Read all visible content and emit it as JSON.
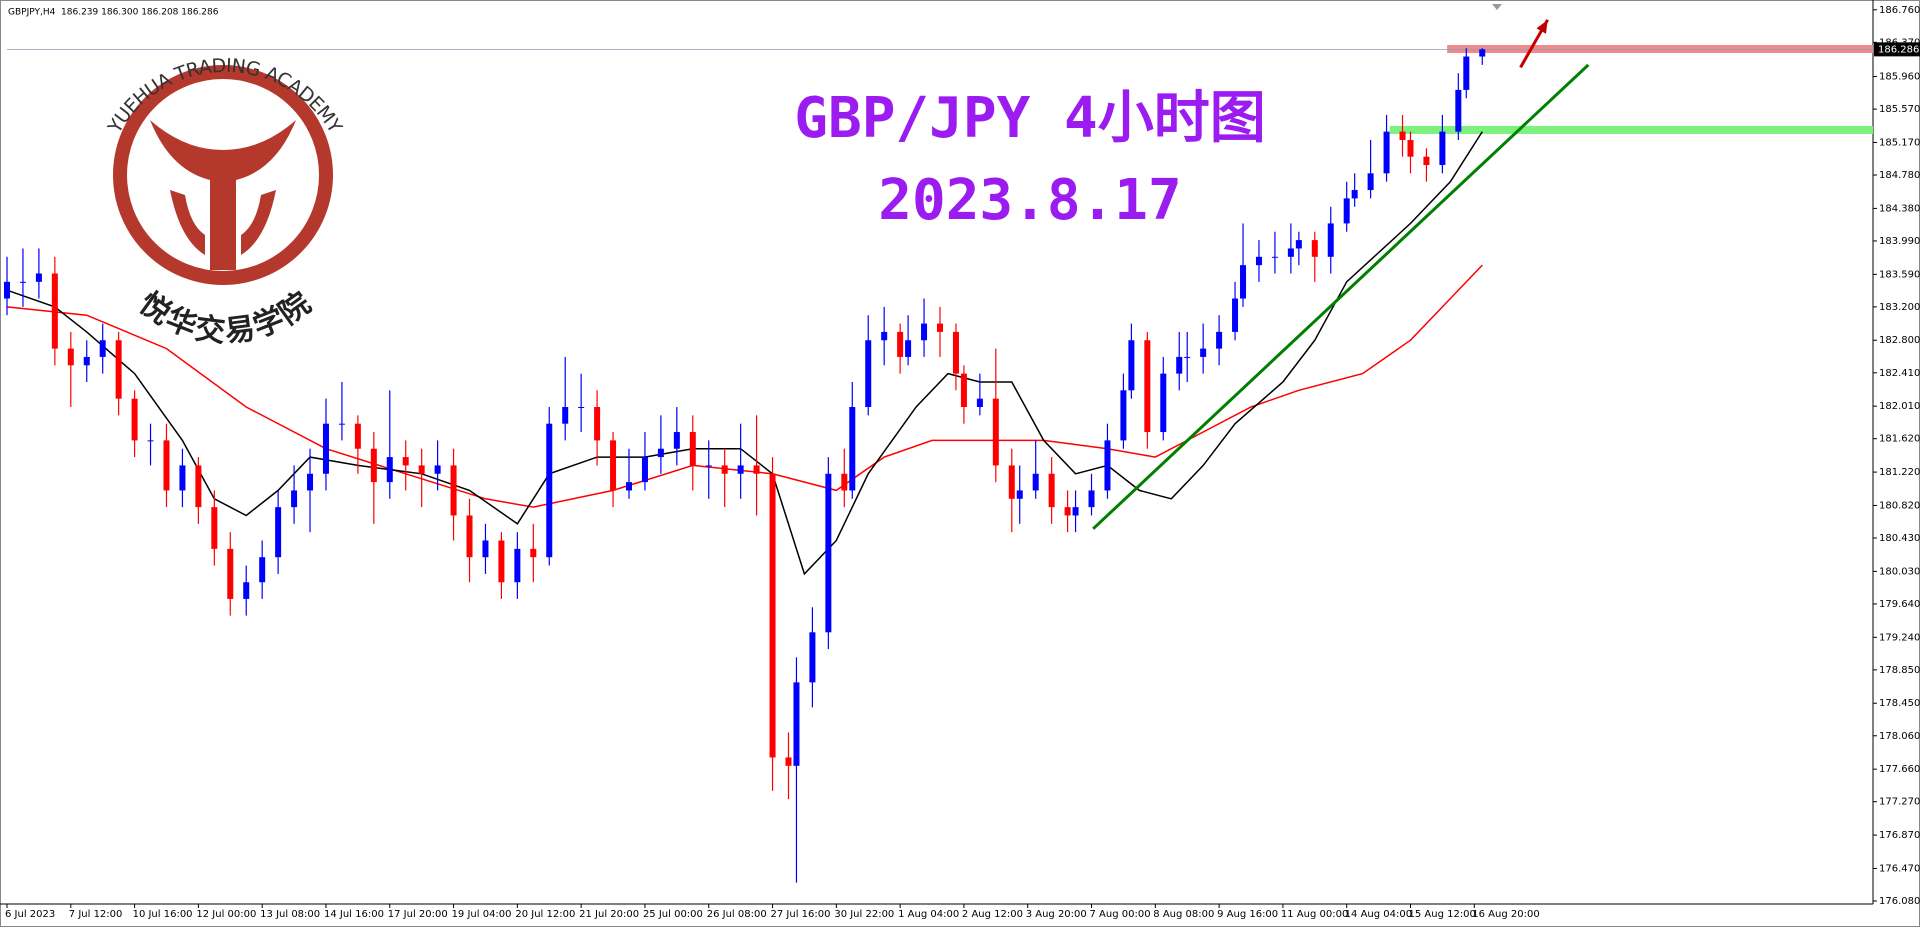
{
  "header": "GBPJPY,H4  186.239 186.300 186.208 186.286",
  "logo": {
    "name_en": "YUEHUA TRADING ACADEMY",
    "name_cn": "悦华交易学院"
  },
  "chart_data": {
    "type": "candlestick",
    "title": "GBP/JPY 4小时图",
    "subtitle": "2023.8.17",
    "title_color": "#9b1cf0",
    "up_color": "#0000ff",
    "down_color": "#ff0000",
    "xlim": [
      0,
      234
    ],
    "ylim": [
      176.08,
      186.76
    ],
    "xticks": [
      {
        "value": 0,
        "label": "6 Jul 2023"
      },
      {
        "value": 8,
        "label": "7 Jul 12:00"
      },
      {
        "value": 16,
        "label": "10 Jul 16:00"
      },
      {
        "value": 24,
        "label": "12 Jul 00:00"
      },
      {
        "value": 32,
        "label": "13 Jul 08:00"
      },
      {
        "value": 40,
        "label": "14 Jul 16:00"
      },
      {
        "value": 48,
        "label": "17 Jul 20:00"
      },
      {
        "value": 56,
        "label": "19 Jul 04:00"
      },
      {
        "value": 64,
        "label": "20 Jul 12:00"
      },
      {
        "value": 72,
        "label": "21 Jul 20:00"
      },
      {
        "value": 80,
        "label": "25 Jul 00:00"
      },
      {
        "value": 88,
        "label": "26 Jul 08:00"
      },
      {
        "value": 96,
        "label": "27 Jul 16:00"
      },
      {
        "value": 104,
        "label": "30 Jul 22:00"
      },
      {
        "value": 112,
        "label": "1 Aug 04:00"
      },
      {
        "value": 120,
        "label": "2 Aug 12:00"
      },
      {
        "value": 128,
        "label": "3 Aug 20:00"
      },
      {
        "value": 136,
        "label": "7 Aug 00:00"
      },
      {
        "value": 144,
        "label": "8 Aug 08:00"
      },
      {
        "value": 152,
        "label": "9 Aug 16:00"
      },
      {
        "value": 160,
        "label": "11 Aug 00:00"
      },
      {
        "value": 168,
        "label": "14 Aug 04:00"
      },
      {
        "value": 176,
        "label": "15 Aug 12:00"
      },
      {
        "value": 184,
        "label": "16 Aug 20:00"
      }
    ],
    "yticks": [
      {
        "value": 186.76,
        "label": "186.760"
      },
      {
        "value": 186.37,
        "label": "186.370"
      },
      {
        "value": 185.96,
        "label": "185.960"
      },
      {
        "value": 185.57,
        "label": "185.570"
      },
      {
        "value": 185.17,
        "label": "185.170"
      },
      {
        "value": 184.78,
        "label": "184.780"
      },
      {
        "value": 184.38,
        "label": "184.380"
      },
      {
        "value": 183.99,
        "label": "183.990"
      },
      {
        "value": 183.59,
        "label": "183.590"
      },
      {
        "value": 183.2,
        "label": "183.200"
      },
      {
        "value": 182.8,
        "label": "182.800"
      },
      {
        "value": 182.41,
        "label": "182.410"
      },
      {
        "value": 182.01,
        "label": "182.010"
      },
      {
        "value": 181.62,
        "label": "181.620"
      },
      {
        "value": 181.22,
        "label": "181.220"
      },
      {
        "value": 180.82,
        "label": "180.820"
      },
      {
        "value": 180.43,
        "label": "180.430"
      },
      {
        "value": 180.03,
        "label": "180.030"
      },
      {
        "value": 179.64,
        "label": "179.640"
      },
      {
        "value": 179.24,
        "label": "179.240"
      },
      {
        "value": 178.85,
        "label": "178.850"
      },
      {
        "value": 178.45,
        "label": "178.450"
      },
      {
        "value": 178.06,
        "label": "178.060"
      },
      {
        "value": 177.66,
        "label": "177.660"
      },
      {
        "value": 177.27,
        "label": "177.270"
      },
      {
        "value": 176.87,
        "label": "176.870"
      },
      {
        "value": 176.47,
        "label": "176.470"
      },
      {
        "value": 176.08,
        "label": "176.080"
      }
    ],
    "last_price": {
      "value": 186.286,
      "label": "186.286"
    },
    "candles": {
      "x": [
        0,
        2,
        4,
        6,
        8,
        10,
        12,
        14,
        16,
        18,
        20,
        22,
        24,
        26,
        28,
        30,
        32,
        34,
        36,
        38,
        40,
        42,
        44,
        46,
        48,
        50,
        52,
        54,
        56,
        58,
        60,
        62,
        64,
        66,
        68,
        70,
        72,
        74,
        76,
        78,
        80,
        82,
        84,
        86,
        88,
        90,
        92,
        94,
        96,
        98,
        99,
        101,
        103,
        105,
        106,
        108,
        110,
        112,
        113,
        115,
        117,
        119,
        120,
        122,
        124,
        126,
        127,
        129,
        131,
        133,
        134,
        136,
        138,
        140,
        141,
        143,
        145,
        147,
        148,
        150,
        152,
        154,
        155,
        157,
        159,
        161,
        162,
        164,
        166,
        168,
        169,
        171,
        173,
        175,
        176,
        178,
        180,
        182,
        183,
        185
      ],
      "open": [
        183.3,
        183.5,
        183.5,
        183.6,
        182.7,
        182.5,
        182.6,
        182.8,
        182.1,
        181.6,
        181.6,
        181.0,
        181.3,
        180.8,
        180.3,
        179.7,
        179.9,
        180.2,
        180.8,
        181.0,
        181.2,
        181.8,
        181.8,
        181.5,
        181.1,
        181.4,
        181.3,
        181.2,
        181.3,
        180.7,
        180.2,
        180.4,
        179.9,
        180.3,
        180.2,
        181.8,
        182.0,
        182.0,
        181.6,
        181.0,
        181.1,
        181.4,
        181.5,
        181.7,
        181.3,
        181.3,
        181.2,
        181.3,
        181.2,
        177.8,
        177.7,
        178.7,
        179.3,
        181.2,
        181.0,
        182.0,
        182.8,
        182.9,
        182.6,
        182.8,
        183.0,
        182.9,
        182.4,
        182.0,
        182.1,
        181.3,
        180.9,
        181.0,
        181.2,
        180.8,
        180.7,
        180.8,
        181.0,
        181.6,
        182.2,
        182.8,
        181.7,
        182.4,
        182.6,
        182.6,
        182.7,
        182.9,
        183.3,
        183.7,
        183.8,
        183.8,
        183.9,
        184.0,
        183.8,
        184.2,
        184.5,
        184.6,
        184.8,
        185.3,
        185.2,
        185.0,
        184.9,
        185.3,
        185.8,
        186.2
      ],
      "high": [
        183.8,
        183.9,
        183.9,
        183.8,
        182.9,
        182.8,
        183.0,
        182.9,
        182.2,
        181.8,
        181.8,
        181.5,
        181.4,
        181.0,
        180.5,
        180.1,
        180.4,
        181.0,
        181.3,
        181.5,
        182.1,
        182.3,
        181.9,
        181.7,
        182.2,
        181.6,
        181.5,
        181.6,
        181.5,
        180.9,
        180.6,
        180.5,
        180.5,
        180.6,
        182.0,
        182.6,
        182.4,
        182.2,
        181.7,
        181.5,
        181.7,
        181.9,
        182.0,
        181.9,
        181.6,
        181.5,
        181.8,
        181.9,
        181.4,
        178.1,
        179.0,
        179.6,
        181.4,
        181.5,
        182.3,
        183.1,
        183.2,
        183.0,
        183.1,
        183.3,
        183.2,
        183.0,
        182.5,
        182.4,
        182.7,
        181.5,
        181.3,
        181.6,
        181.4,
        181.0,
        181.0,
        181.2,
        181.8,
        182.4,
        183.0,
        182.9,
        182.6,
        182.9,
        182.9,
        183.0,
        183.1,
        183.5,
        184.2,
        184.0,
        184.1,
        184.2,
        184.1,
        184.1,
        184.4,
        184.7,
        184.8,
        185.2,
        185.5,
        185.5,
        185.3,
        185.1,
        185.5,
        186.0,
        186.3,
        186.3
      ],
      "low": [
        183.1,
        183.2,
        183.3,
        182.5,
        182.0,
        182.3,
        182.4,
        181.9,
        181.4,
        181.3,
        180.8,
        180.8,
        180.6,
        180.1,
        179.5,
        179.5,
        179.7,
        180.0,
        180.6,
        180.5,
        181.0,
        181.6,
        181.2,
        180.6,
        180.9,
        181.0,
        180.8,
        181.0,
        180.4,
        179.9,
        180.0,
        179.7,
        179.7,
        179.9,
        180.1,
        181.6,
        181.7,
        181.3,
        180.8,
        180.9,
        181.0,
        181.2,
        181.3,
        181.0,
        180.9,
        180.8,
        180.9,
        180.7,
        177.4,
        177.3,
        176.3,
        178.4,
        179.1,
        180.8,
        180.9,
        181.9,
        182.5,
        182.4,
        182.5,
        182.6,
        182.6,
        182.2,
        181.8,
        181.9,
        181.1,
        180.5,
        180.6,
        180.9,
        180.6,
        180.5,
        180.5,
        180.7,
        180.9,
        181.5,
        182.1,
        181.5,
        181.6,
        182.2,
        182.3,
        182.4,
        182.5,
        182.8,
        183.2,
        183.5,
        183.6,
        183.6,
        183.7,
        183.5,
        183.6,
        184.1,
        184.4,
        184.5,
        184.7,
        185.0,
        184.8,
        184.7,
        184.8,
        185.2,
        185.7,
        186.1
      ],
      "close": [
        183.5,
        183.5,
        183.6,
        182.7,
        182.5,
        182.6,
        182.8,
        182.1,
        181.6,
        181.6,
        181.0,
        181.3,
        180.8,
        180.3,
        179.7,
        179.9,
        180.2,
        180.8,
        181.0,
        181.2,
        181.8,
        181.8,
        181.5,
        181.1,
        181.4,
        181.3,
        181.2,
        181.3,
        180.7,
        180.2,
        180.4,
        179.9,
        180.3,
        180.2,
        181.8,
        182.0,
        182.0,
        181.6,
        181.0,
        181.1,
        181.4,
        181.5,
        181.7,
        181.3,
        181.3,
        181.2,
        181.3,
        181.2,
        177.8,
        177.7,
        178.7,
        179.3,
        181.2,
        181.0,
        182.0,
        182.8,
        182.9,
        182.6,
        182.8,
        183.0,
        182.9,
        182.4,
        182.0,
        182.1,
        181.3,
        180.9,
        181.0,
        181.2,
        180.8,
        180.7,
        180.8,
        181.0,
        181.6,
        182.2,
        182.8,
        181.7,
        182.4,
        182.6,
        182.6,
        182.7,
        182.9,
        183.3,
        183.7,
        183.8,
        183.8,
        183.9,
        184.0,
        183.8,
        184.2,
        184.5,
        184.6,
        184.8,
        185.3,
        185.2,
        185.0,
        184.9,
        185.3,
        185.8,
        186.2,
        186.286
      ]
    },
    "moving_averages": [
      {
        "color": "#ff0000",
        "x": [
          0,
          10,
          20,
          30,
          40,
          50,
          60,
          66,
          76,
          86,
          96,
          104,
          110,
          116,
          122,
          130,
          138,
          144,
          150,
          156,
          162,
          170,
          176,
          180,
          185
        ],
        "values": [
          183.2,
          183.1,
          182.7,
          182.0,
          181.5,
          181.2,
          180.9,
          180.8,
          181.0,
          181.3,
          181.2,
          181.0,
          181.4,
          181.6,
          181.6,
          181.6,
          181.5,
          181.4,
          181.7,
          182.0,
          182.2,
          182.4,
          182.8,
          183.2,
          183.7
        ]
      },
      {
        "color": "#000000",
        "x": [
          0,
          6,
          10,
          16,
          22,
          26,
          30,
          34,
          38,
          44,
          52,
          58,
          64,
          68,
          74,
          80,
          86,
          92,
          96,
          100,
          104,
          108,
          114,
          118,
          122,
          126,
          130,
          134,
          138,
          142,
          146,
          150,
          154,
          160,
          164,
          168,
          176,
          181,
          185
        ],
        "values": [
          183.4,
          183.2,
          182.9,
          182.4,
          181.6,
          180.9,
          180.7,
          181.0,
          181.4,
          181.3,
          181.2,
          181.0,
          180.6,
          181.2,
          181.4,
          181.4,
          181.5,
          181.5,
          181.2,
          180.0,
          180.4,
          181.2,
          182.0,
          182.4,
          182.3,
          182.3,
          181.6,
          181.2,
          181.3,
          181.0,
          180.9,
          181.3,
          181.8,
          182.3,
          182.8,
          183.5,
          184.2,
          184.7,
          185.3
        ]
      }
    ],
    "trendline": {
      "color": "#008000",
      "x": [
        136.2,
        198.3
      ],
      "values": [
        180.54,
        186.1
      ]
    },
    "zones": [
      {
        "color": "#7ef07e",
        "x": 173.4,
        "value": 185.32
      },
      {
        "color": "#f08a8a",
        "x": 180.6,
        "value": 186.29
      }
    ],
    "arrow": {
      "color": "#c00000",
      "x": [
        189.8,
        193.2
      ],
      "values": [
        186.07,
        186.64
      ]
    }
  }
}
